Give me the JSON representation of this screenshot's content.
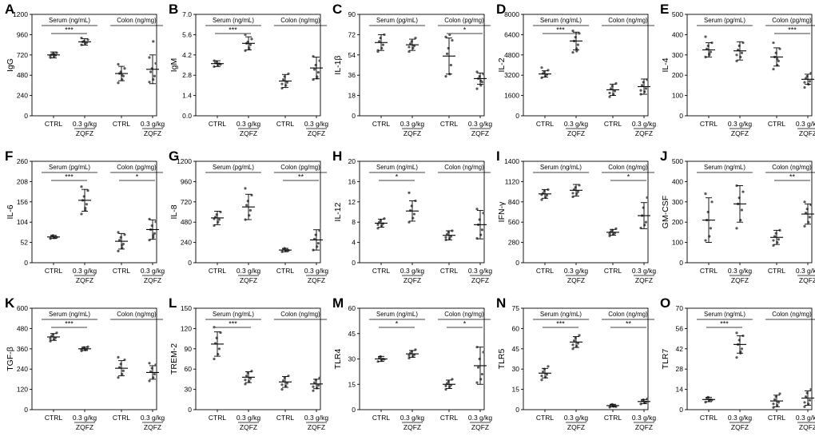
{
  "figure": {
    "group_label": "ZQFZ",
    "x_labels": [
      "CTRL",
      "0.3 g/kg",
      "CTRL",
      "0.3 g/kg"
    ]
  },
  "chart_data": [
    {
      "letter": "A",
      "ylabel": "IgG",
      "yticks": [
        "0",
        "240",
        "480",
        "720",
        "960",
        "1200"
      ],
      "ylim": [
        0,
        1200
      ],
      "serum_unit": "Serum (ng/mL)",
      "colon_unit": "Colon (ng/mg)",
      "groups": [
        {
          "mean": 720,
          "err": 35,
          "points": [
            690,
            705,
            715,
            725,
            735,
            745,
            710,
            730
          ]
        },
        {
          "mean": 875,
          "err": 38,
          "points": [
            840,
            855,
            865,
            875,
            885,
            900,
            920,
            860
          ]
        },
        {
          "mean": 500,
          "err": 85,
          "points": [
            390,
            430,
            470,
            500,
            520,
            560,
            610,
            480
          ]
        },
        {
          "mean": 550,
          "err": 170,
          "points": [
            400,
            430,
            470,
            520,
            560,
            620,
            690,
            880
          ]
        }
      ],
      "sig": [
        {
          "g1": 0,
          "g2": 1,
          "label": "***"
        }
      ]
    },
    {
      "letter": "B",
      "ylabel": "IgM",
      "yticks": [
        "0.0",
        "1.4",
        "2.8",
        "4.2",
        "5.6",
        "7.0"
      ],
      "ylim": [
        0,
        7
      ],
      "serum_unit": "Serum (ng/mL)",
      "colon_unit": "Colon (ng/mg)",
      "groups": [
        {
          "mean": 3.6,
          "err": 0.2,
          "points": [
            3.4,
            3.5,
            3.6,
            3.65,
            3.7,
            3.55,
            3.8
          ]
        },
        {
          "mean": 5.0,
          "err": 0.45,
          "points": [
            4.5,
            4.7,
            4.9,
            5.0,
            5.1,
            5.3,
            5.6,
            4.6
          ]
        },
        {
          "mean": 2.4,
          "err": 0.45,
          "points": [
            1.9,
            2.1,
            2.3,
            2.5,
            2.7,
            2.9,
            2.2
          ]
        },
        {
          "mean": 3.3,
          "err": 0.75,
          "points": [
            2.5,
            2.7,
            3.0,
            3.2,
            3.5,
            3.8,
            4.1,
            2.6
          ]
        }
      ],
      "sig": [
        {
          "g1": 0,
          "g2": 1,
          "label": "***"
        }
      ]
    },
    {
      "letter": "C",
      "ylabel": "IL-1β",
      "yticks": [
        "0",
        "18",
        "36",
        "54",
        "72",
        "90"
      ],
      "ylim": [
        0,
        90
      ],
      "serum_unit": "Serum (pg/mL)",
      "colon_unit": "Colon (pg/mg)",
      "groups": [
        {
          "mean": 65,
          "err": 7,
          "points": [
            57,
            60,
            63,
            66,
            69,
            72,
            58
          ]
        },
        {
          "mean": 63,
          "err": 5,
          "points": [
            57,
            60,
            62,
            64,
            66,
            69,
            61
          ]
        },
        {
          "mean": 53,
          "err": 16,
          "points": [
            35,
            37,
            45,
            55,
            60,
            67,
            70,
            72
          ]
        },
        {
          "mean": 33,
          "err": 5,
          "points": [
            24,
            27,
            30,
            33,
            35,
            37,
            39,
            31
          ]
        }
      ],
      "sig": [
        {
          "g1": 2,
          "g2": 3,
          "label": "*"
        }
      ]
    },
    {
      "letter": "D",
      "ylabel": "IL-2",
      "yticks": [
        "0",
        "1600",
        "3200",
        "4800",
        "6400",
        "8000"
      ],
      "ylim": [
        0,
        8000
      ],
      "serum_unit": "Serum (ng/mL)",
      "colon_unit": "Colon (ng/mg)",
      "groups": [
        {
          "mean": 3300,
          "err": 250,
          "points": [
            3000,
            3150,
            3250,
            3350,
            3450,
            3600,
            3800
          ]
        },
        {
          "mean": 5900,
          "err": 700,
          "points": [
            5000,
            5300,
            5600,
            5900,
            6200,
            6500,
            6700,
            5100
          ]
        },
        {
          "mean": 2050,
          "err": 450,
          "points": [
            1500,
            1700,
            1950,
            2150,
            2350,
            2550,
            1800
          ]
        },
        {
          "mean": 2300,
          "err": 600,
          "points": [
            1700,
            1900,
            2150,
            2400,
            2650,
            2850,
            2000
          ]
        }
      ],
      "sig": [
        {
          "g1": 0,
          "g2": 1,
          "label": "***"
        }
      ]
    },
    {
      "letter": "E",
      "ylabel": "IL-4",
      "yticks": [
        "0",
        "100",
        "200",
        "300",
        "400",
        "500"
      ],
      "ylim": [
        0,
        500
      ],
      "serum_unit": "Serum (pg/mL)",
      "colon_unit": "Colon (pg/mg)",
      "groups": [
        {
          "mean": 325,
          "err": 35,
          "points": [
            290,
            300,
            315,
            330,
            345,
            360,
            390,
            305
          ]
        },
        {
          "mean": 320,
          "err": 45,
          "points": [
            270,
            290,
            310,
            325,
            345,
            360,
            300
          ]
        },
        {
          "mean": 290,
          "err": 45,
          "points": [
            230,
            250,
            270,
            290,
            310,
            330,
            360,
            280
          ]
        },
        {
          "mean": 180,
          "err": 25,
          "points": [
            140,
            155,
            170,
            185,
            195,
            210,
            165
          ]
        }
      ],
      "sig": [
        {
          "g1": 2,
          "g2": 3,
          "label": "***"
        }
      ]
    },
    {
      "letter": "F",
      "ylabel": "IL-6",
      "yticks": [
        "0",
        "52",
        "104",
        "156",
        "208",
        "260"
      ],
      "ylim": [
        0,
        260
      ],
      "serum_unit": "Serum (pg/mL)",
      "colon_unit": "Colon (pg/mg)",
      "groups": [
        {
          "mean": 66,
          "err": 4,
          "points": [
            62,
            64,
            66,
            68,
            70,
            65
          ]
        },
        {
          "mean": 160,
          "err": 28,
          "points": [
            125,
            135,
            150,
            160,
            170,
            185,
            195,
            140
          ]
        },
        {
          "mean": 55,
          "err": 20,
          "points": [
            30,
            38,
            48,
            58,
            65,
            72,
            78,
            45
          ]
        },
        {
          "mean": 85,
          "err": 25,
          "points": [
            58,
            65,
            75,
            85,
            95,
            105,
            112,
            70
          ]
        }
      ],
      "sig": [
        {
          "g1": 0,
          "g2": 1,
          "label": "***"
        },
        {
          "g1": 2,
          "g2": 3,
          "label": "*"
        }
      ]
    },
    {
      "letter": "G",
      "ylabel": "IL-8",
      "yticks": [
        "0",
        "240",
        "480",
        "720",
        "960",
        "1200"
      ],
      "ylim": [
        0,
        1200
      ],
      "serum_unit": "Serum (pg/mL)",
      "colon_unit": "Colon (pg/mg)",
      "groups": [
        {
          "mean": 530,
          "err": 80,
          "points": [
            440,
            480,
            510,
            540,
            570,
            600,
            520
          ]
        },
        {
          "mean": 660,
          "err": 150,
          "points": [
            510,
            560,
            620,
            680,
            730,
            800,
            880
          ]
        },
        {
          "mean": 150,
          "err": 20,
          "points": [
            130,
            140,
            150,
            160,
            170,
            145
          ]
        },
        {
          "mean": 270,
          "err": 120,
          "points": [
            150,
            190,
            230,
            280,
            330,
            380
          ]
        }
      ],
      "sig": [
        {
          "g1": 2,
          "g2": 3,
          "label": "**"
        }
      ]
    },
    {
      "letter": "H",
      "ylabel": "IL-12",
      "yticks": [
        "0",
        "4",
        "8",
        "12",
        "16",
        "20"
      ],
      "ylim": [
        0,
        20
      ],
      "serum_unit": "Serum (ng/mL)",
      "colon_unit": "Colon (ng/mg)",
      "groups": [
        {
          "mean": 7.8,
          "err": 0.8,
          "points": [
            6.8,
            7.3,
            7.7,
            8.0,
            8.3,
            8.7,
            7.5
          ]
        },
        {
          "mean": 10.2,
          "err": 2.0,
          "points": [
            8.0,
            8.8,
            9.6,
            10.3,
            11.2,
            12.2,
            13.8
          ]
        },
        {
          "mean": 5.4,
          "err": 0.9,
          "points": [
            4.5,
            4.8,
            5.2,
            5.6,
            6.0,
            6.3,
            5.0
          ]
        },
        {
          "mean": 7.5,
          "err": 2.8,
          "points": [
            4.8,
            5.5,
            6.5,
            7.5,
            8.5,
            9.8,
            10.6
          ]
        }
      ],
      "sig": [
        {
          "g1": 0,
          "g2": 1,
          "label": "*"
        }
      ]
    },
    {
      "letter": "I",
      "ylabel": "IFN-γ",
      "yticks": [
        "0",
        "280",
        "560",
        "840",
        "1120",
        "1400"
      ],
      "ylim": [
        0,
        1400
      ],
      "serum_unit": "Serum (ng/mL)",
      "colon_unit": "Colon (ng/mg)",
      "groups": [
        {
          "mean": 950,
          "err": 60,
          "points": [
            870,
            900,
            930,
            960,
            990,
            1010,
            940
          ]
        },
        {
          "mean": 1000,
          "err": 80,
          "points": [
            910,
            950,
            980,
            1010,
            1040,
            1070,
            960
          ]
        },
        {
          "mean": 420,
          "err": 40,
          "points": [
            370,
            390,
            410,
            430,
            450,
            470,
            400
          ]
        },
        {
          "mean": 650,
          "err": 180,
          "points": [
            480,
            520,
            560,
            650,
            760,
            900
          ]
        }
      ],
      "sig": [
        {
          "g1": 2,
          "g2": 3,
          "label": "*"
        }
      ]
    },
    {
      "letter": "J",
      "ylabel": "GM-CSF",
      "yticks": [
        "0",
        "100",
        "200",
        "300",
        "400",
        "500"
      ],
      "ylim": [
        0,
        500
      ],
      "serum_unit": "Serum (ng/mL)",
      "colon_unit": "Colon (ng/mg)",
      "groups": [
        {
          "mean": 210,
          "err": 110,
          "points": [
            110,
            130,
            170,
            210,
            250,
            300,
            340
          ]
        },
        {
          "mean": 290,
          "err": 90,
          "points": [
            170,
            210,
            260,
            290,
            320,
            350,
            380
          ]
        },
        {
          "mean": 125,
          "err": 35,
          "points": [
            85,
            100,
            115,
            130,
            145,
            160,
            110
          ]
        },
        {
          "mean": 240,
          "err": 50,
          "points": [
            180,
            200,
            225,
            245,
            265,
            285,
            300
          ]
        }
      ],
      "sig": [
        {
          "g1": 2,
          "g2": 3,
          "label": "**"
        }
      ]
    },
    {
      "letter": "K",
      "ylabel": "TGF-β",
      "yticks": [
        "0",
        "120",
        "240",
        "360",
        "480",
        "600"
      ],
      "ylim": [
        0,
        600
      ],
      "serum_unit": "Serum (ng/mL)",
      "colon_unit": "Colon (ng/mg)",
      "groups": [
        {
          "mean": 430,
          "err": 20,
          "points": [
            405,
            415,
            425,
            435,
            445,
            455,
            420
          ]
        },
        {
          "mean": 360,
          "err": 10,
          "points": [
            348,
            353,
            358,
            363,
            368,
            372,
            356
          ]
        },
        {
          "mean": 245,
          "err": 45,
          "points": [
            190,
            210,
            230,
            250,
            270,
            295,
            310
          ]
        },
        {
          "mean": 220,
          "err": 40,
          "points": [
            170,
            190,
            210,
            225,
            245,
            265,
            275
          ]
        }
      ],
      "sig": [
        {
          "g1": 0,
          "g2": 1,
          "label": "***"
        }
      ]
    },
    {
      "letter": "L",
      "ylabel": "TREM-2",
      "yticks": [
        "0",
        "30",
        "60",
        "90",
        "120",
        "150"
      ],
      "ylim": [
        0,
        150
      ],
      "serum_unit": "Serum (ng/mL)",
      "colon_unit": "Colon (ng/mg)",
      "groups": [
        {
          "mean": 97,
          "err": 18,
          "points": [
            75,
            82,
            90,
            98,
            106,
            114,
            122
          ]
        },
        {
          "mean": 48,
          "err": 8,
          "points": [
            38,
            42,
            46,
            50,
            54,
            57,
            44
          ]
        },
        {
          "mean": 41,
          "err": 8,
          "points": [
            30,
            35,
            39,
            43,
            47,
            50,
            37
          ]
        },
        {
          "mean": 38,
          "err": 7,
          "points": [
            28,
            32,
            36,
            40,
            44,
            47,
            34
          ]
        }
      ],
      "sig": [
        {
          "g1": 0,
          "g2": 1,
          "label": "***"
        }
      ]
    },
    {
      "letter": "M",
      "ylabel": "TLR4",
      "yticks": [
        "0",
        "15",
        "30",
        "45",
        "60"
      ],
      "ylim": [
        0,
        60
      ],
      "serum_unit": "Serum (ng/mL)",
      "colon_unit": "Colon (ng/mg)",
      "groups": [
        {
          "mean": 30,
          "err": 1.5,
          "points": [
            28.5,
            29.3,
            30,
            30.7,
            31.5,
            29.8
          ]
        },
        {
          "mean": 33,
          "err": 2,
          "points": [
            30.5,
            31.5,
            32.5,
            33.5,
            34.5,
            35.5,
            32
          ]
        },
        {
          "mean": 15,
          "err": 2.5,
          "points": [
            12,
            13.5,
            14.5,
            15.5,
            16.5,
            18,
            14
          ]
        },
        {
          "mean": 26,
          "err": 11,
          "points": [
            16,
            18,
            21,
            25,
            30,
            34,
            37
          ]
        }
      ],
      "sig": [
        {
          "g1": 0,
          "g2": 1,
          "label": "*"
        },
        {
          "g1": 2,
          "g2": 3,
          "label": "*"
        }
      ]
    },
    {
      "letter": "N",
      "ylabel": "TLR5",
      "yticks": [
        "0",
        "15",
        "30",
        "45",
        "60",
        "75"
      ],
      "ylim": [
        0,
        75
      ],
      "serum_unit": "Serum (ng/mL)",
      "colon_unit": "Colon (ng/mg)",
      "groups": [
        {
          "mean": 27,
          "err": 3.5,
          "points": [
            22,
            24,
            26,
            28,
            30,
            32,
            25
          ]
        },
        {
          "mean": 50,
          "err": 4,
          "points": [
            45,
            47,
            49,
            51,
            53,
            55,
            48
          ]
        },
        {
          "mean": 3,
          "err": 1,
          "points": [
            1.8,
            2.4,
            2.9,
            3.4,
            3.9,
            2.2
          ]
        },
        {
          "mean": 6,
          "err": 1.5,
          "points": [
            4.2,
            5.0,
            5.8,
            6.5,
            7.3,
            8.0
          ]
        }
      ],
      "sig": [
        {
          "g1": 0,
          "g2": 1,
          "label": "***"
        },
        {
          "g1": 2,
          "g2": 3,
          "label": "**"
        }
      ]
    },
    {
      "letter": "O",
      "ylabel": "TLR7",
      "yticks": [
        "0",
        "14",
        "28",
        "42",
        "56",
        "70"
      ],
      "ylim": [
        0,
        70
      ],
      "serum_unit": "Serum (ng/mL)",
      "colon_unit": "Colon (ng/mg)",
      "groups": [
        {
          "mean": 7,
          "err": 1.5,
          "points": [
            5.2,
            6.2,
            7.0,
            7.8,
            8.6,
            6.6
          ]
        },
        {
          "mean": 45,
          "err": 6,
          "points": [
            36,
            39,
            42,
            45,
            48,
            51,
            53,
            40
          ]
        },
        {
          "mean": 6,
          "err": 4,
          "points": [
            1.5,
            3,
            5,
            7,
            9,
            11,
            4
          ]
        },
        {
          "mean": 8,
          "err": 5,
          "points": [
            2,
            4,
            6.5,
            9,
            11.5,
            14,
            5
          ]
        }
      ],
      "sig": [
        {
          "g1": 0,
          "g2": 1,
          "label": "***"
        }
      ]
    }
  ]
}
